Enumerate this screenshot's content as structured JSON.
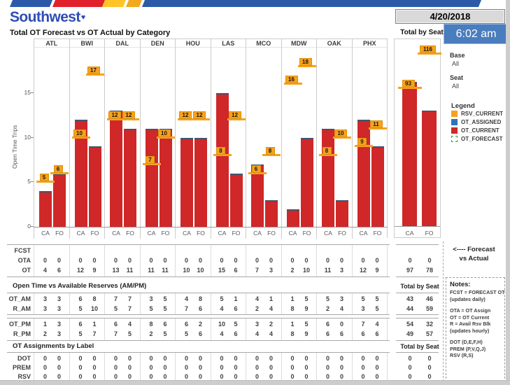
{
  "branding": {
    "logo_text": "Southwest",
    "heart_icon": "heart-icon"
  },
  "header": {
    "date": "4/20/2018",
    "time": "6:02 am",
    "title": "Total OT Forecast vs OT Actual by Category",
    "total_by_seat_label": "Total by Seat"
  },
  "filters": {
    "base": {
      "label": "Base",
      "value": "All"
    },
    "seat": {
      "label": "Seat",
      "value": "All"
    }
  },
  "legend": {
    "title": "Legend",
    "items": [
      {
        "label": "RSV_CURRENT",
        "color": "#f6a21d",
        "style": "solid"
      },
      {
        "label": "OT_ASSIGNED",
        "color": "#2e74b5",
        "style": "solid"
      },
      {
        "label": "OT_CURRENT",
        "color": "#d02729",
        "style": "solid"
      },
      {
        "label": "OT_FORECAST",
        "color": "#43a047",
        "style": "dashed"
      }
    ]
  },
  "chart_data": {
    "type": "bar",
    "title": "Total OT Forecast vs OT Actual by Category",
    "ylabel": "Open Time Trips",
    "yticks": [
      0,
      5,
      10,
      15
    ],
    "ylim": [
      0,
      20
    ],
    "sub_categories": [
      "CA",
      "FO"
    ],
    "series_legend": [
      "RSV_CURRENT",
      "OT_ASSIGNED",
      "OT_CURRENT",
      "OT_FORECAST"
    ],
    "groups": [
      {
        "airport": "ATL",
        "ot_current": [
          4,
          6
        ],
        "rsv_current": [
          5,
          6
        ]
      },
      {
        "airport": "BWI",
        "ot_current": [
          12,
          9
        ],
        "rsv_current": [
          10,
          17
        ]
      },
      {
        "airport": "DAL",
        "ot_current": [
          13,
          11
        ],
        "rsv_current": [
          12,
          12
        ]
      },
      {
        "airport": "DEN",
        "ot_current": [
          11,
          11
        ],
        "rsv_current": [
          7,
          10
        ]
      },
      {
        "airport": "HOU",
        "ot_current": [
          10,
          10
        ],
        "rsv_current": [
          12,
          12
        ]
      },
      {
        "airport": "LAS",
        "ot_current": [
          15,
          6
        ],
        "rsv_current": [
          8,
          12
        ]
      },
      {
        "airport": "MCO",
        "ot_current": [
          7,
          3
        ],
        "rsv_current": [
          6,
          8
        ]
      },
      {
        "airport": "MDW",
        "ot_current": [
          2,
          10
        ],
        "rsv_current": [
          16,
          18
        ]
      },
      {
        "airport": "OAK",
        "ot_current": [
          11,
          3
        ],
        "rsv_current": [
          8,
          10
        ]
      },
      {
        "airport": "PHX",
        "ot_current": [
          12,
          9
        ],
        "rsv_current": [
          9,
          11
        ]
      }
    ],
    "total": {
      "label": "Total by Seat",
      "ot_current": [
        97,
        78
      ],
      "rsv_current": [
        93,
        116
      ],
      "ylim": [
        0,
        123
      ]
    }
  },
  "tables": {
    "forecast": {
      "rows": [
        {
          "label": "FCST",
          "values": [
            "",
            "",
            "",
            "",
            "",
            "",
            "",
            "",
            "",
            "",
            "",
            "",
            "",
            "",
            "",
            "",
            "",
            "",
            "",
            ""
          ],
          "totals": [
            "",
            ""
          ]
        },
        {
          "label": "OTA",
          "values": [
            0,
            0,
            0,
            0,
            0,
            0,
            0,
            0,
            0,
            0,
            0,
            0,
            0,
            0,
            0,
            0,
            0,
            0,
            0,
            0
          ],
          "totals": [
            0,
            0
          ]
        },
        {
          "label": "OT",
          "values": [
            4,
            6,
            12,
            9,
            13,
            11,
            11,
            11,
            10,
            10,
            15,
            6,
            7,
            3,
            2,
            10,
            11,
            3,
            12,
            9
          ],
          "totals": [
            97,
            78
          ]
        }
      ]
    },
    "reserves": {
      "title": "Open Time vs Available Reserves (AM/PM)",
      "total_header": "Total by Seat",
      "am_rows": [
        {
          "label": "OT_AM",
          "values": [
            3,
            3,
            6,
            8,
            7,
            7,
            3,
            5,
            4,
            8,
            5,
            1,
            4,
            1,
            1,
            5,
            5,
            3,
            5,
            5
          ],
          "totals": [
            43,
            46
          ]
        },
        {
          "label": "R_AM",
          "values": [
            3,
            3,
            5,
            10,
            5,
            7,
            5,
            5,
            7,
            6,
            4,
            6,
            2,
            4,
            8,
            9,
            2,
            4,
            3,
            5
          ],
          "totals": [
            44,
            59
          ]
        }
      ],
      "pm_rows": [
        {
          "label": "OT_PM",
          "values": [
            1,
            3,
            6,
            1,
            6,
            4,
            8,
            6,
            6,
            2,
            10,
            5,
            3,
            2,
            1,
            5,
            6,
            0,
            7,
            4
          ],
          "totals": [
            54,
            32
          ]
        },
        {
          "label": "R_PM",
          "values": [
            2,
            3,
            5,
            7,
            7,
            5,
            2,
            5,
            5,
            6,
            4,
            6,
            4,
            4,
            8,
            9,
            6,
            6,
            6,
            6
          ],
          "totals": [
            49,
            57
          ]
        }
      ]
    },
    "assignments": {
      "title": "OT Assignments by Label",
      "total_header": "Total by Seat",
      "rows": [
        {
          "label": "DOT",
          "values": [
            0,
            0,
            0,
            0,
            0,
            0,
            0,
            0,
            0,
            0,
            0,
            0,
            0,
            0,
            0,
            0,
            0,
            0,
            0,
            0
          ],
          "totals": [
            0,
            0
          ]
        },
        {
          "label": "PREM",
          "values": [
            0,
            0,
            0,
            0,
            0,
            0,
            0,
            0,
            0,
            0,
            0,
            0,
            0,
            0,
            0,
            0,
            0,
            0,
            0,
            0
          ],
          "totals": [
            0,
            0
          ]
        },
        {
          "label": "RSV",
          "values": [
            0,
            0,
            0,
            0,
            0,
            0,
            0,
            0,
            0,
            0,
            0,
            0,
            0,
            0,
            0,
            0,
            0,
            0,
            0,
            0
          ],
          "totals": [
            0,
            0
          ]
        }
      ]
    }
  },
  "annotations": {
    "line1": "<---- Forecast",
    "line2": "vs Actual"
  },
  "notes": {
    "title": "Notes:",
    "lines": [
      "FCST = FORECAST OT",
      "(updates daily)",
      "",
      "OTA = OT Assign",
      "OT = OT Current",
      "R = Avail Rsv Blk",
      "(updates hourly)",
      "",
      "DOT (D,E,F,H)",
      "PREM (P,V,Q,J)",
      "RSV (R,S)"
    ]
  },
  "colors": {
    "bar_red": "#d02729",
    "bar_cap_blue": "#44546a",
    "flag_orange": "#f6a21d",
    "legend_blue": "#2e74b5",
    "forecast_green": "#43a047",
    "time_box_blue": "#4a7dbd",
    "brand_blue": "#2f4db5",
    "heart_red": "#e0232a",
    "stripe_blue": "#2d5aa8",
    "stripe_red": "#e2202b",
    "stripe_yellow": "#ffc527",
    "stripe_gold": "#f2a91e"
  }
}
